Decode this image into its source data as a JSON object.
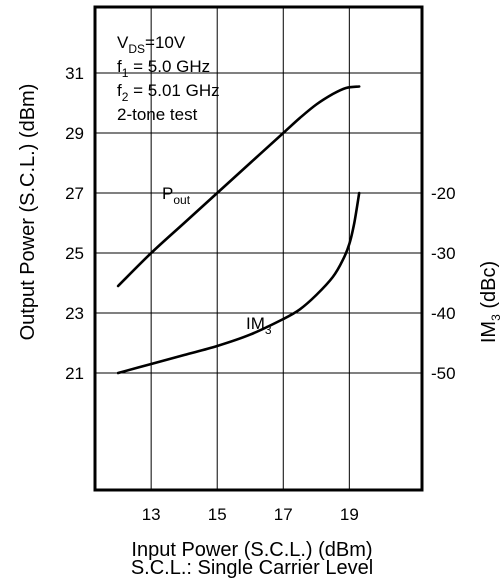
{
  "chart_data": {
    "type": "line",
    "xlabel": "Input Power (S.C.L.) (dBm)",
    "footnote": "S.C.L.: Single Carrier Level",
    "ylabel_left": "Output Power (S.C.L.) (dBm)",
    "ylabel_right": {
      "main": "IM",
      "sub": "3",
      "tail": " (dBc)"
    },
    "x_axis": {
      "range": [
        11.3,
        21.2
      ],
      "ticks": [
        "13",
        "15",
        "17",
        "19"
      ],
      "tick_values": [
        13,
        15,
        17,
        19
      ]
    },
    "y_left": {
      "range": [
        17.1,
        33.2
      ],
      "ticks": [
        "21",
        "23",
        "25",
        "27",
        "29",
        "31"
      ],
      "tick_values": [
        21,
        23,
        25,
        27,
        29,
        31
      ]
    },
    "y_right": {
      "tick_values": [
        -50,
        -40,
        -30,
        -20
      ],
      "ticks": [
        "-50",
        "-40",
        "-30",
        "-20"
      ],
      "map_left_at": [
        21,
        27
      ]
    },
    "grid": true,
    "conditions": [
      {
        "main": "V",
        "sub": "DS",
        "tail": "=10V"
      },
      {
        "main": "f",
        "sub": "1",
        "tail": " = 5.0 GHz"
      },
      {
        "main": "f",
        "sub": "2",
        "tail": " = 5.01 GHz"
      },
      {
        "main": "2-tone test",
        "sub": "",
        "tail": ""
      }
    ],
    "series": [
      {
        "name": "Pout",
        "label": {
          "main": "P",
          "sub": "out"
        },
        "axis": "left",
        "x": [
          12.0,
          13.0,
          14.0,
          15.0,
          16.0,
          17.0,
          17.5,
          18.0,
          18.5,
          18.9,
          19.3
        ],
        "y": [
          23.9,
          25.0,
          26.0,
          27.0,
          28.0,
          29.0,
          29.5,
          29.95,
          30.3,
          30.5,
          30.55
        ]
      },
      {
        "name": "IM3",
        "label": {
          "main": "IM",
          "sub": "3"
        },
        "axis": "right",
        "x": [
          12.0,
          13.0,
          14.0,
          15.0,
          16.0,
          17.0,
          17.5,
          18.0,
          18.5,
          18.8,
          19.0,
          19.15,
          19.3
        ],
        "y": [
          -50.0,
          -48.5,
          -47.0,
          -45.5,
          -43.6,
          -41.0,
          -39.4,
          -37.0,
          -34.0,
          -31.2,
          -28.5,
          -25.0,
          -20.0
        ]
      }
    ]
  }
}
